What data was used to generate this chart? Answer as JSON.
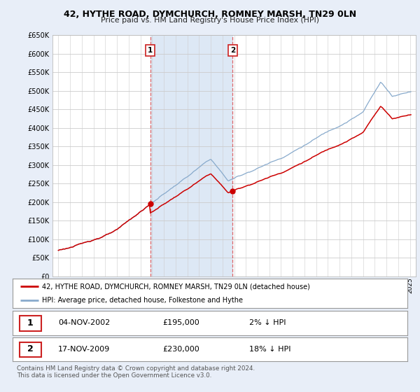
{
  "title": "42, HYTHE ROAD, DYMCHURCH, ROMNEY MARSH, TN29 0LN",
  "subtitle": "Price paid vs. HM Land Registry's House Price Index (HPI)",
  "ylabel_ticks": [
    "£0",
    "£50K",
    "£100K",
    "£150K",
    "£200K",
    "£250K",
    "£300K",
    "£350K",
    "£400K",
    "£450K",
    "£500K",
    "£550K",
    "£600K",
    "£650K"
  ],
  "ytick_vals": [
    0,
    50000,
    100000,
    150000,
    200000,
    250000,
    300000,
    350000,
    400000,
    450000,
    500000,
    550000,
    600000,
    650000
  ],
  "xlim_start": 1994.5,
  "xlim_end": 2025.5,
  "ylim_min": 0,
  "ylim_max": 650000,
  "background_color": "#e8eef8",
  "plot_bg_color": "#ffffff",
  "grid_color": "#cccccc",
  "purchase1_date": 2002.84,
  "purchase1_price": 195000,
  "purchase2_date": 2009.88,
  "purchase2_price": 230000,
  "vline1_x": 2002.84,
  "vline2_x": 2009.88,
  "legend_line1": "42, HYTHE ROAD, DYMCHURCH, ROMNEY MARSH, TN29 0LN (detached house)",
  "legend_line2": "HPI: Average price, detached house, Folkestone and Hythe",
  "table_row1": [
    "1",
    "04-NOV-2002",
    "£195,000",
    "2% ↓ HPI"
  ],
  "table_row2": [
    "2",
    "17-NOV-2009",
    "£230,000",
    "18% ↓ HPI"
  ],
  "footer": "Contains HM Land Registry data © Crown copyright and database right 2024.\nThis data is licensed under the Open Government Licence v3.0.",
  "line_color_red": "#cc0000",
  "line_color_blue": "#88aacc",
  "vline_color": "#dd4444",
  "span_color": "#dde8f5"
}
